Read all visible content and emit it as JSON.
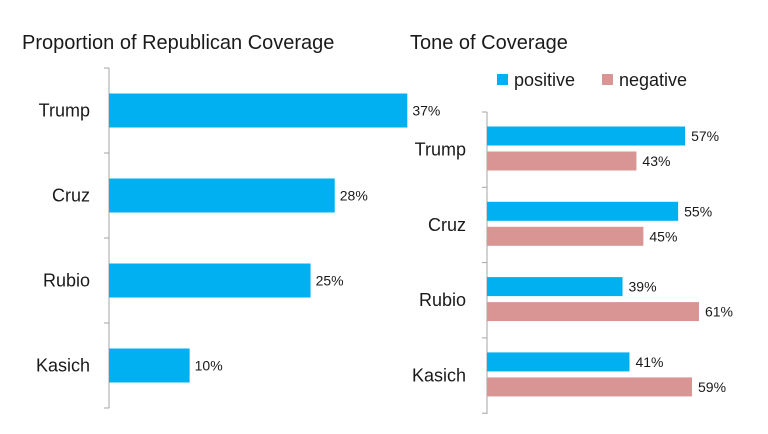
{
  "chart_data": [
    {
      "type": "bar",
      "orientation": "horizontal",
      "title": "Proportion of Republican Coverage",
      "categories": [
        "Trump",
        "Cruz",
        "Rubio",
        "Kasich"
      ],
      "values": [
        37,
        28,
        25,
        10
      ],
      "value_labels": [
        "37%",
        "28%",
        "25%",
        "10%"
      ],
      "xlim": [
        0,
        48
      ],
      "colors": {
        "bar": "#00b0f0"
      },
      "grid": false
    },
    {
      "type": "bar",
      "orientation": "horizontal",
      "title": "Tone of Coverage",
      "categories": [
        "Trump",
        "Cruz",
        "Rubio",
        "Kasich"
      ],
      "series": [
        {
          "name": "positive",
          "values": [
            57,
            55,
            39,
            41
          ],
          "value_labels": [
            "57%",
            "55%",
            "39%",
            "41%"
          ],
          "color": "#00b0f0"
        },
        {
          "name": "negative",
          "values": [
            43,
            45,
            61,
            59
          ],
          "value_labels": [
            "43%",
            "45%",
            "61%",
            "59%"
          ],
          "color": "#d99594"
        }
      ],
      "xlim": [
        0,
        80
      ],
      "legend": "top",
      "grid": false
    }
  ]
}
